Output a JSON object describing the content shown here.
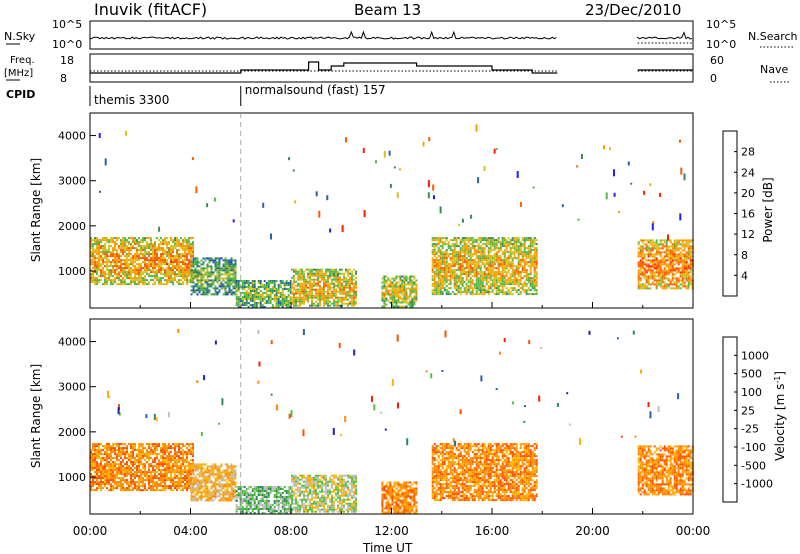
{
  "header": {
    "station": "Inuvik (fitACF)",
    "beam": "Beam 13",
    "date": "23/Dec/2010"
  },
  "scan_panel": {
    "left_label": "N.Sky",
    "left_ticks": [
      "10^5",
      "10^0"
    ],
    "right_label": "N.Search",
    "right_ticks": [
      "10^5",
      "10^0"
    ]
  },
  "freq_panel": {
    "left_label_1": "Freq.",
    "left_label_2": "[MHz]",
    "left_ticks": [
      "18",
      "8"
    ],
    "right_label": "Nave",
    "right_ticks": [
      "60",
      "0"
    ]
  },
  "cpid": {
    "label": "CPID",
    "modes": [
      {
        "name": "themis 3300",
        "start_hour": 0
      },
      {
        "name": "normalsound (fast) 157",
        "start_hour": 6
      }
    ]
  },
  "colors": {
    "power": [
      "#1e1eff",
      "#2a5fb0",
      "#3a8a55",
      "#55b84a",
      "#d8c020",
      "#ff9a00",
      "#ff5a00",
      "#ff1a00"
    ],
    "velocity": [
      "#2222aa",
      "#2a5fb0",
      "#2e8b57",
      "#55c040",
      "#bebebe",
      "#ffb000",
      "#ff8800",
      "#ff5000",
      "#ff1a00"
    ]
  },
  "chart_data": [
    {
      "type": "heatmap",
      "quantity": "power",
      "xlabel": "Time UT",
      "ylabel": "Slant Range [km]",
      "xlim": [
        0,
        24
      ],
      "ylim": [
        180,
        4500
      ],
      "x_ticks": [
        "00:00",
        "04:00",
        "08:00",
        "12:00",
        "16:00",
        "20:00",
        "00:00"
      ],
      "y_ticks": [
        "1000",
        "2000",
        "3000",
        "4000"
      ],
      "colorbar_label": "Power [dB]",
      "colorbar_ticks": [
        "28",
        "24",
        "20",
        "16",
        "12",
        "8",
        "4"
      ],
      "colorbar_range": [
        0,
        32
      ],
      "features": [
        {
          "t0": 0.0,
          "t1": 4.1,
          "r0": 700,
          "r1": 1750,
          "level": 24
        },
        {
          "t0": 4.0,
          "t1": 5.8,
          "r0": 500,
          "r1": 1300,
          "level": 14
        },
        {
          "t0": 5.8,
          "t1": 8.0,
          "r0": 200,
          "r1": 800,
          "level": 16
        },
        {
          "t0": 8.0,
          "t1": 10.6,
          "r0": 220,
          "r1": 1050,
          "level": 22
        },
        {
          "t0": 11.6,
          "t1": 13.0,
          "r0": 220,
          "r1": 900,
          "level": 20
        },
        {
          "t0": 13.6,
          "t1": 17.8,
          "r0": 500,
          "r1": 1750,
          "level": 22
        },
        {
          "t0": 21.8,
          "t1": 24.0,
          "r0": 600,
          "r1": 1700,
          "level": 26
        }
      ]
    },
    {
      "type": "heatmap",
      "quantity": "velocity",
      "xlabel": "Time UT",
      "ylabel": "Slant Range [km]",
      "xlim": [
        0,
        24
      ],
      "ylim": [
        180,
        4500
      ],
      "x_ticks": [
        "00:00",
        "04:00",
        "08:00",
        "12:00",
        "16:00",
        "20:00",
        "00:00"
      ],
      "y_ticks": [
        "1000",
        "2000",
        "3000",
        "4000"
      ],
      "colorbar_label": "Velocity [m s",
      "colorbar_label_sup": "-1",
      "colorbar_label_end": "]",
      "colorbar_ticks": [
        "1000",
        "500",
        "100",
        "25",
        "-25",
        "-100",
        "-500",
        "-1000"
      ],
      "features": [
        {
          "t0": 0.0,
          "t1": 4.1,
          "r0": 700,
          "r1": 1750,
          "level": 6
        },
        {
          "t0": 4.0,
          "t1": 5.8,
          "r0": 500,
          "r1": 1300,
          "level": 5
        },
        {
          "t0": 5.8,
          "t1": 8.0,
          "r0": 200,
          "r1": 800,
          "level": 3
        },
        {
          "t0": 8.0,
          "t1": 10.6,
          "r0": 220,
          "r1": 1050,
          "level": 4
        },
        {
          "t0": 11.6,
          "t1": 13.0,
          "r0": 220,
          "r1": 900,
          "level": 6
        },
        {
          "t0": 13.6,
          "t1": 17.8,
          "r0": 500,
          "r1": 1750,
          "level": 6
        },
        {
          "t0": 21.8,
          "t1": 24.0,
          "r0": 600,
          "r1": 1700,
          "level": 6
        }
      ]
    }
  ]
}
